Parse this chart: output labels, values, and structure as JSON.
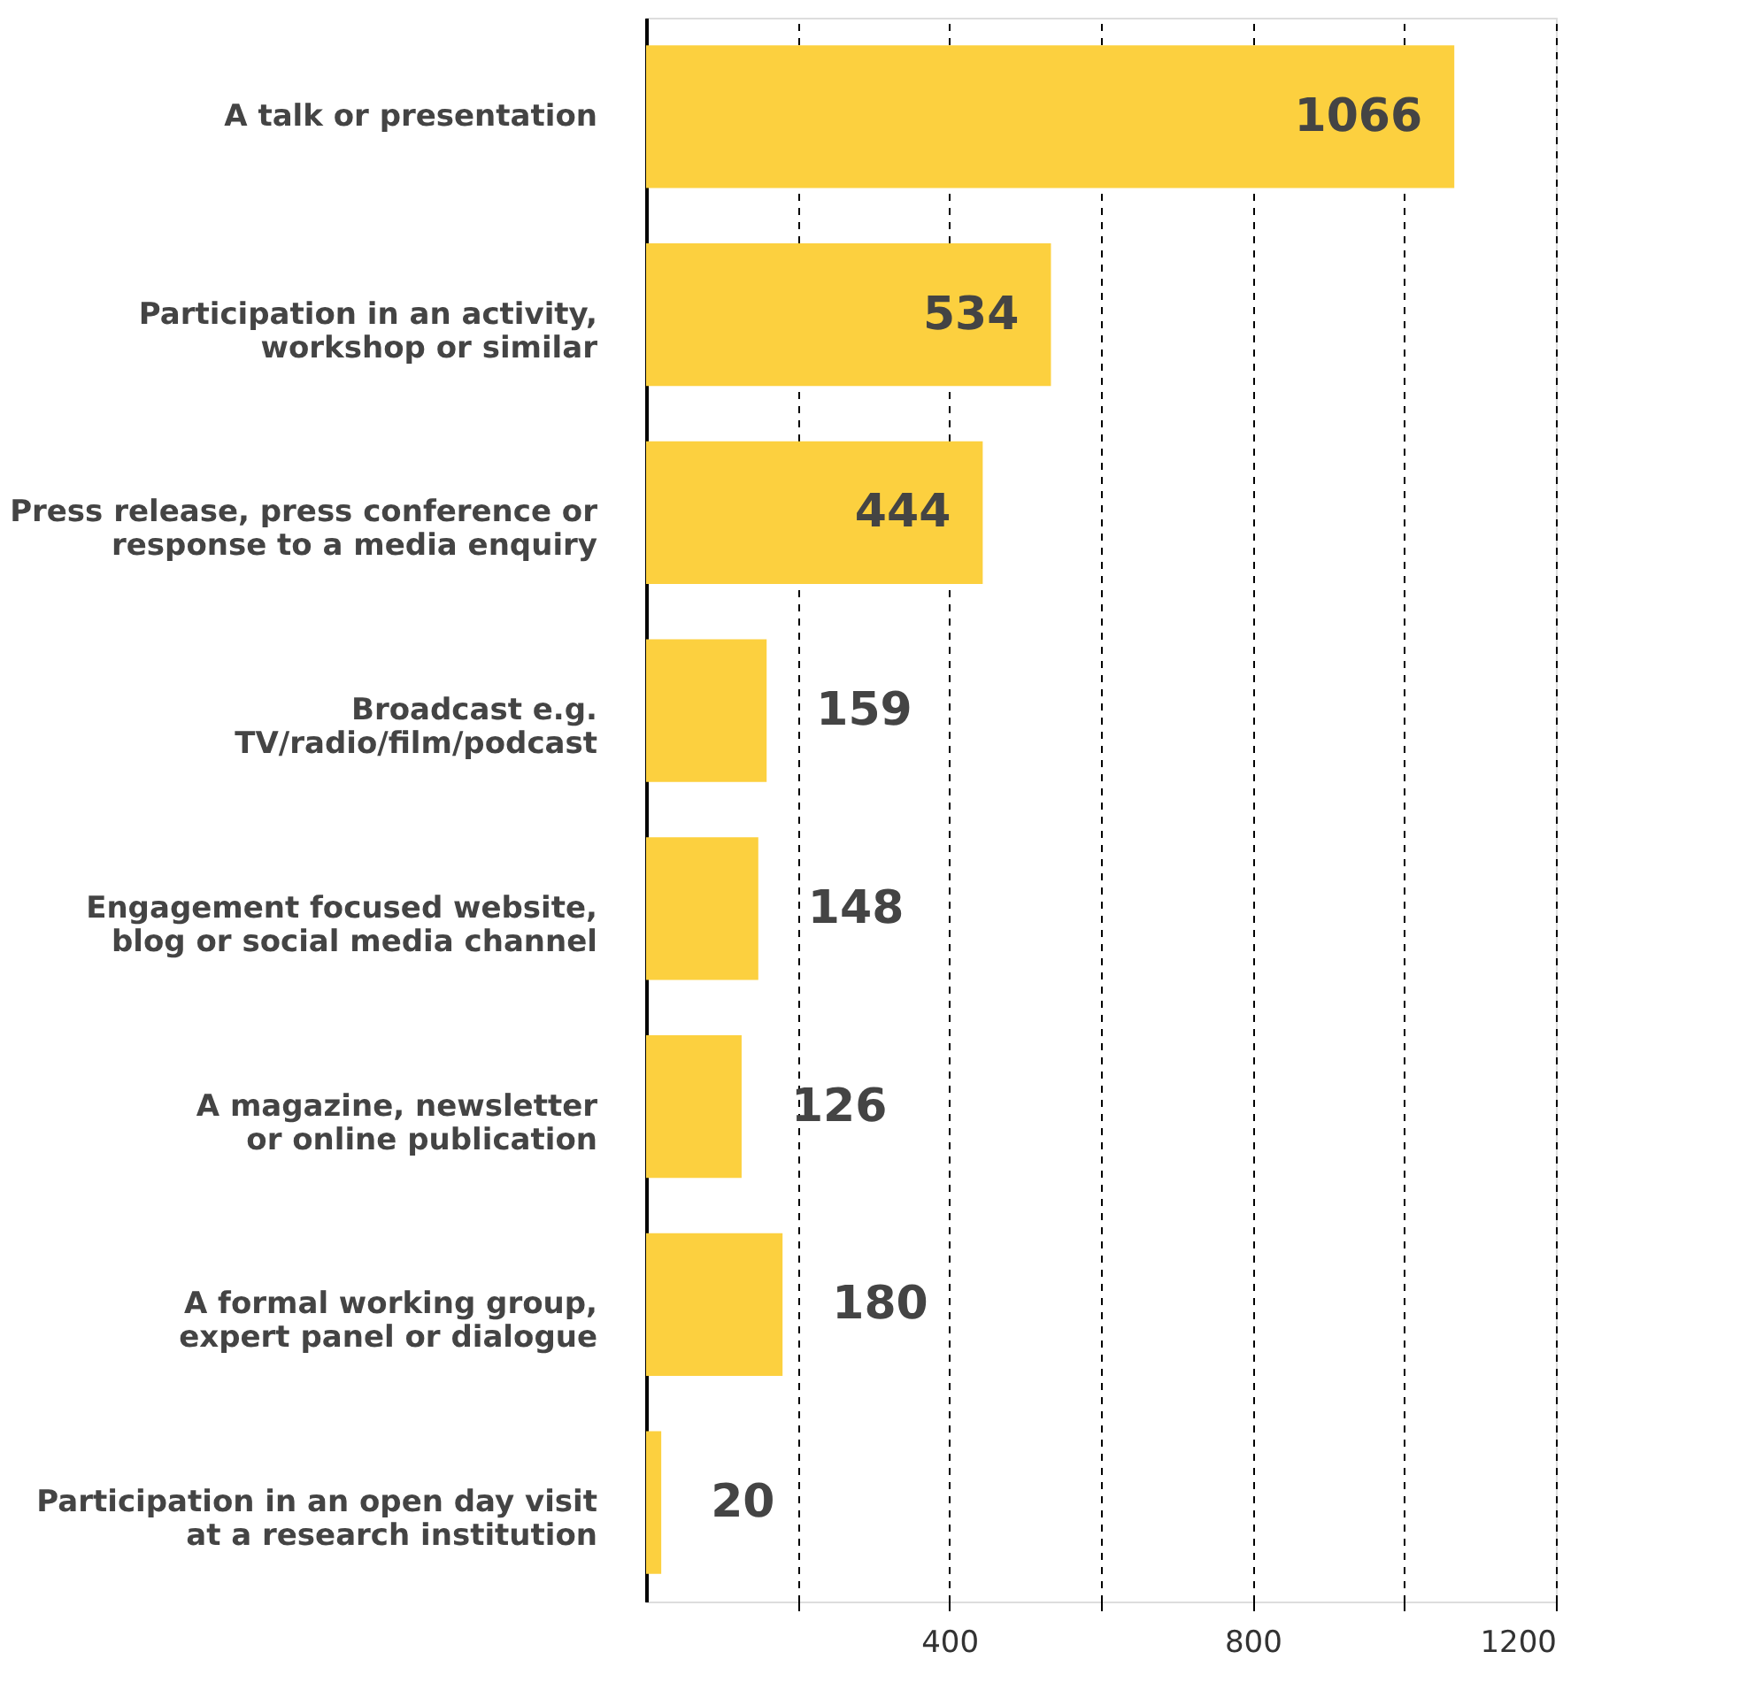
{
  "chart_data": {
    "type": "bar",
    "orientation": "horizontal",
    "categories": [
      "A talk or presentation",
      "Participation in an activity,\nworkshop or similar",
      "Press release, press conference or\nresponse to a media enquiry",
      "Broadcast e.g.\nTV/radio/film/podcast",
      "Engagement focused website,\nblog or social media channel",
      "A magazine, newsletter\nor online publication",
      "A formal working group,\nexpert panel or dialogue",
      "Participation in an open day visit\nat a research institution"
    ],
    "values": [
      1066,
      534,
      444,
      159,
      148,
      126,
      180,
      20
    ],
    "color": "#fcd03f",
    "xlim": [
      0,
      1200
    ],
    "xticks": [
      {
        "value": 200,
        "label": null
      },
      400,
      {
        "value": 600,
        "label": null
      },
      800,
      {
        "value": 1000,
        "label": null
      },
      1200
    ],
    "grid": "x",
    "data_labels": true
  }
}
